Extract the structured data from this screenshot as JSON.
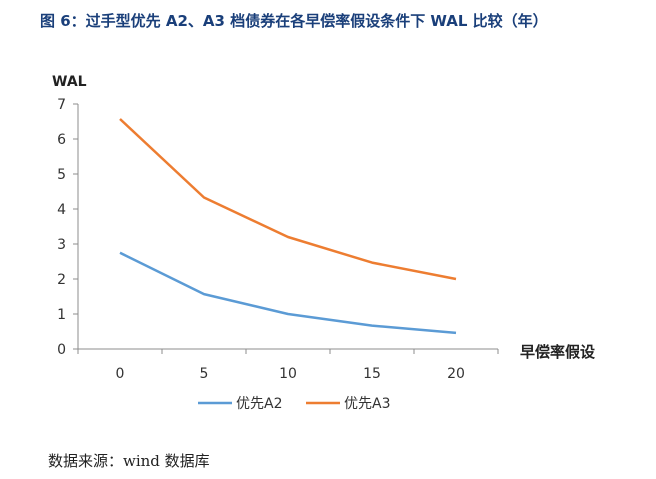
{
  "title": "图 6：过手型优先 A2、A3 档债券在各早偿率假设条件下 WAL 比较（年）",
  "source": "数据来源：wind 数据库",
  "chart_data": {
    "type": "line",
    "title": "",
    "xlabel": "早偿率假设",
    "ylabel": "WAL",
    "x": [
      0,
      5,
      10,
      15,
      20
    ],
    "ylim": [
      0,
      7
    ],
    "yticks": [
      0,
      1,
      2,
      3,
      4,
      5,
      6,
      7
    ],
    "grid": false,
    "legend_position": "bottom",
    "series": [
      {
        "name": "优先A2",
        "color": "#5b9bd5",
        "values": [
          2.75,
          1.57,
          1.0,
          0.67,
          0.46
        ]
      },
      {
        "name": "优先A3",
        "color": "#ed7d31",
        "values": [
          6.57,
          4.33,
          3.2,
          2.47,
          2.0
        ]
      }
    ]
  }
}
